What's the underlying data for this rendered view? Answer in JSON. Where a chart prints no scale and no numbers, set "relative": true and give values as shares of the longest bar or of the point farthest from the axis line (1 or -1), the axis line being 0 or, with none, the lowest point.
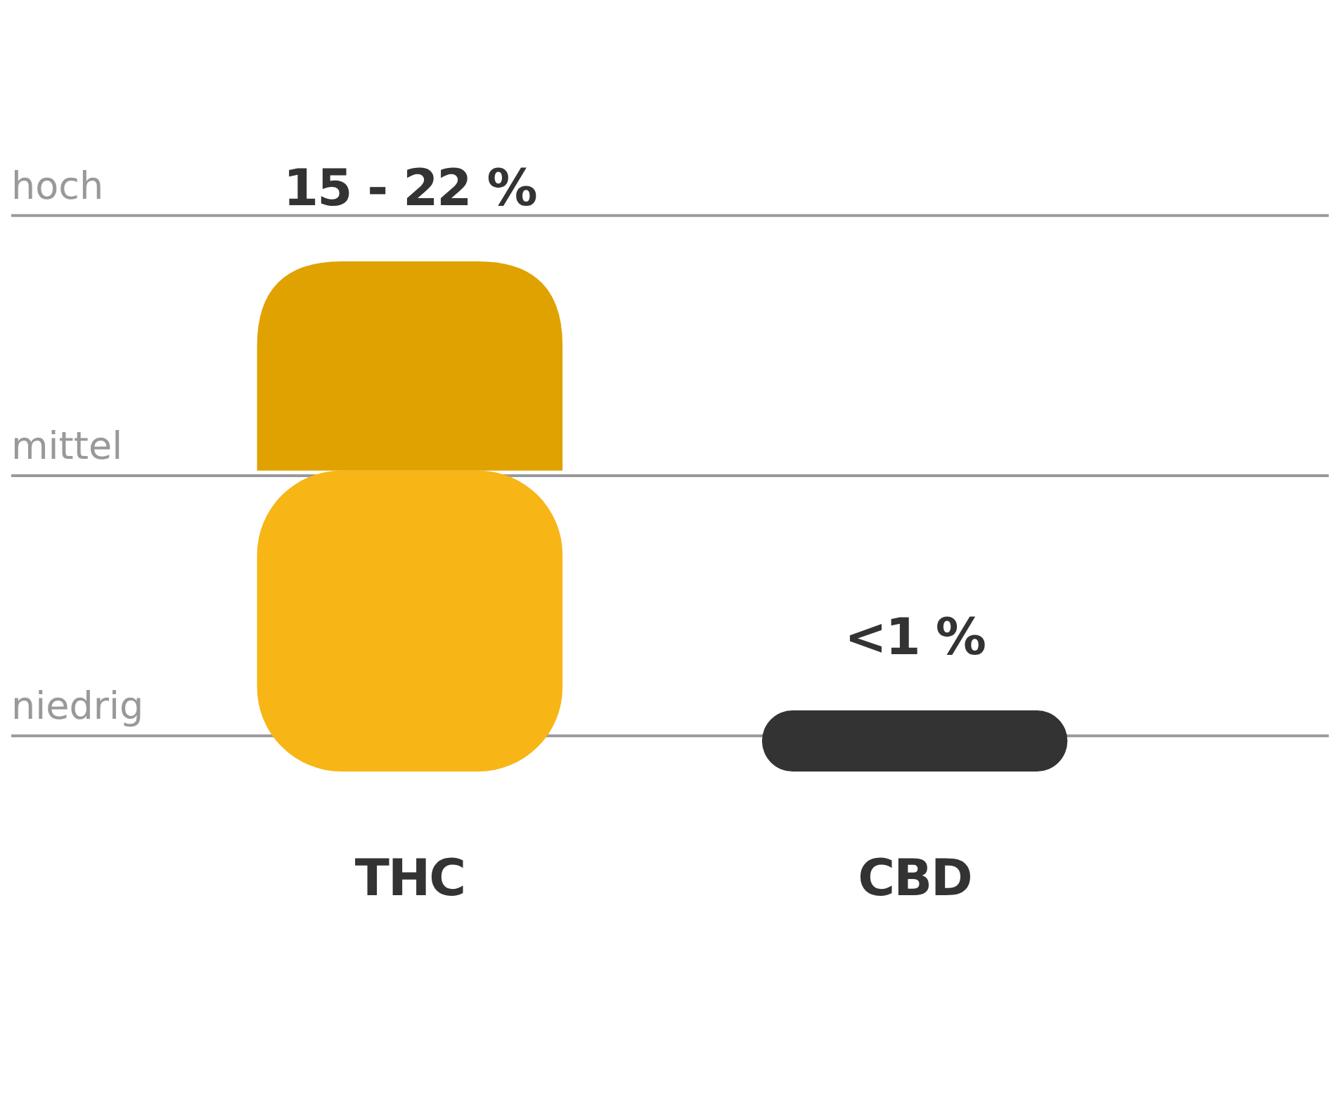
{
  "chart_data": {
    "type": "bar",
    "categories": [
      "THC",
      "CBD"
    ],
    "stacked": true,
    "relative": true,
    "series": [
      {
        "colors": [
          "#f7b516",
          "#333333"
        ],
        "values": [
          0.59,
          0.12
        ]
      },
      {
        "color": "#e0a200",
        "values": [
          0.41,
          null
        ]
      }
    ],
    "ref_lines": [
      {
        "axis": "y",
        "value": 0.07,
        "label": "niedrig"
      },
      {
        "axis": "y",
        "value": 0.58,
        "label": "mittel"
      },
      {
        "axis": "y",
        "value": 1.09,
        "label": "hoch"
      }
    ],
    "annotations": [
      "15 - 22 %",
      "<1 %"
    ]
  }
}
